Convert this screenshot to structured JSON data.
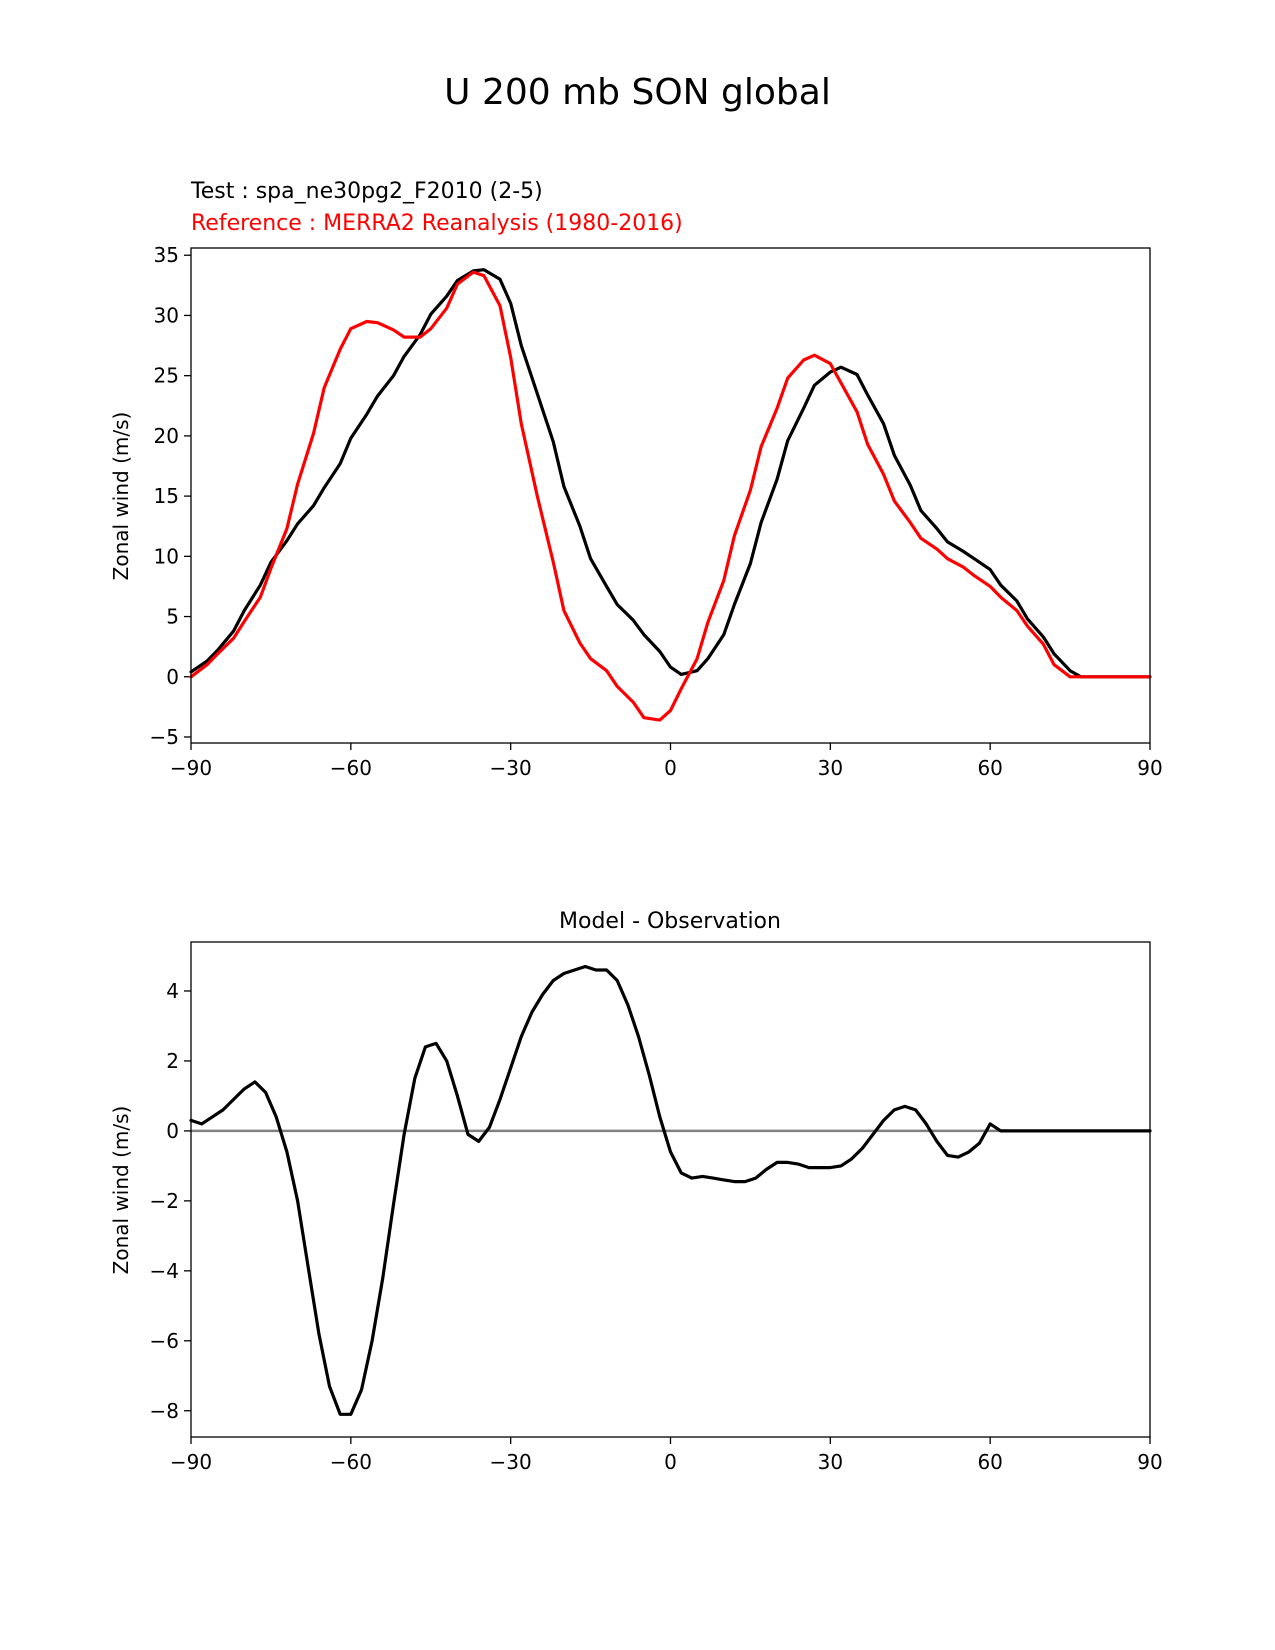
{
  "figure": {
    "suptitle": "U 200 mb SON global"
  },
  "chart_data": [
    {
      "type": "line",
      "test_label": "Test : spa_ne30pg2_F2010 (2-5)",
      "reference_label": "Reference : MERRA2 Reanalysis (1980-2016)",
      "title": "",
      "xlabel": "",
      "ylabel": "Zonal wind (m/s)",
      "xlim": [
        -90,
        90
      ],
      "ylim": [
        -5.5,
        35.6
      ],
      "xticks": [
        -90,
        -60,
        -30,
        0,
        30,
        60,
        90
      ],
      "xtick_labels": [
        "−90",
        "−60",
        "−30",
        "0",
        "30",
        "60",
        "90"
      ],
      "yticks": [
        -5,
        0,
        5,
        10,
        15,
        20,
        25,
        30,
        35
      ],
      "ytick_labels": [
        "−5",
        "0",
        "5",
        "10",
        "15",
        "20",
        "25",
        "30",
        "35"
      ],
      "grid": false,
      "series": [
        {
          "name": "Test : spa_ne30pg2_F2010 (2-5)",
          "color": "#000000",
          "x": [
            -90,
            -87,
            -85,
            -82,
            -80,
            -77,
            -75,
            -72,
            -70,
            -67,
            -65,
            -62,
            -60,
            -57,
            -55,
            -52,
            -50,
            -47,
            -45,
            -42,
            -40,
            -37,
            -35,
            -32,
            -30,
            -28,
            -25,
            -22,
            -20,
            -17,
            -15,
            -12,
            -10,
            -7,
            -5,
            -2,
            0,
            2,
            5,
            7,
            10,
            12,
            15,
            17,
            20,
            22,
            25,
            27,
            30,
            32,
            35,
            37,
            40,
            42,
            45,
            47,
            50,
            52,
            55,
            57,
            60,
            62,
            65,
            67,
            70,
            72,
            75,
            77,
            80,
            82,
            85,
            87,
            90
          ],
          "y": [
            0.4,
            1.3,
            2.2,
            3.8,
            5.5,
            7.6,
            9.5,
            11.3,
            12.7,
            14.2,
            15.7,
            17.7,
            19.8,
            21.8,
            23.3,
            25.0,
            26.6,
            28.4,
            30.1,
            31.6,
            32.9,
            33.7,
            33.8,
            33.0,
            31.0,
            27.5,
            23.5,
            19.5,
            15.8,
            12.5,
            9.8,
            7.5,
            6.0,
            4.7,
            3.5,
            2.1,
            0.8,
            0.2,
            0.5,
            1.5,
            3.5,
            6.0,
            9.4,
            12.8,
            16.4,
            19.6,
            22.3,
            24.2,
            25.3,
            25.7,
            25.1,
            23.4,
            21.0,
            18.4,
            15.9,
            13.8,
            12.3,
            11.2,
            10.4,
            9.8,
            8.9,
            7.6,
            6.3,
            4.8,
            3.3,
            1.9,
            0.5,
            0.0,
            0.0,
            0.0,
            0.0,
            0.0,
            0.0
          ]
        },
        {
          "name": "Reference : MERRA2 Reanalysis (1980-2016)",
          "color": "#ff0000",
          "x": [
            -90,
            -87,
            -85,
            -82,
            -80,
            -77,
            -75,
            -72,
            -70,
            -67,
            -65,
            -62,
            -60,
            -57,
            -55,
            -52,
            -50,
            -47,
            -45,
            -42,
            -40,
            -37,
            -35,
            -32,
            -30,
            -28,
            -25,
            -22,
            -20,
            -17,
            -15,
            -12,
            -10,
            -7,
            -5,
            -2,
            0,
            2,
            5,
            7,
            10,
            12,
            15,
            17,
            20,
            22,
            25,
            27,
            30,
            32,
            35,
            37,
            40,
            42,
            45,
            47,
            50,
            52,
            55,
            57,
            60,
            62,
            65,
            67,
            70,
            72,
            75,
            77,
            80,
            82,
            85,
            87,
            90
          ],
          "y": [
            0.0,
            1.0,
            1.9,
            3.2,
            4.6,
            6.6,
            9.0,
            12.3,
            16.0,
            20.2,
            24.0,
            27.2,
            28.9,
            29.5,
            29.4,
            28.8,
            28.2,
            28.2,
            28.9,
            30.6,
            32.6,
            33.6,
            33.3,
            30.8,
            26.5,
            21.0,
            15.0,
            9.5,
            5.5,
            2.8,
            1.5,
            0.5,
            -0.8,
            -2.1,
            -3.4,
            -3.6,
            -2.8,
            -1.0,
            1.5,
            4.5,
            8.0,
            11.7,
            15.5,
            19.1,
            22.3,
            24.8,
            26.3,
            26.7,
            26.0,
            24.4,
            22.0,
            19.3,
            16.8,
            14.6,
            12.8,
            11.5,
            10.6,
            9.8,
            9.1,
            8.4,
            7.5,
            6.6,
            5.5,
            4.2,
            2.7,
            1.0,
            0.0,
            0.0,
            0.0,
            0.0,
            0.0,
            0.0,
            0.0
          ]
        }
      ]
    },
    {
      "type": "line",
      "title": "Model - Observation",
      "xlabel": "",
      "ylabel": "Zonal wind (m/s)",
      "xlim": [
        -90,
        90
      ],
      "ylim": [
        -8.75,
        5.4
      ],
      "xticks": [
        -90,
        -60,
        -30,
        0,
        30,
        60,
        90
      ],
      "xtick_labels": [
        "−90",
        "−60",
        "−30",
        "0",
        "30",
        "60",
        "90"
      ],
      "yticks": [
        -8,
        -6,
        -4,
        -2,
        0,
        2,
        4
      ],
      "ytick_labels": [
        "−8",
        "−6",
        "−4",
        "−2",
        "0",
        "2",
        "4"
      ],
      "grid": false,
      "zero_line_color": "#808080",
      "series": [
        {
          "name": "",
          "color": "#000000",
          "x": [
            -90,
            -88,
            -86,
            -84,
            -82,
            -80,
            -78,
            -76,
            -74,
            -72,
            -70,
            -68,
            -66,
            -64,
            -62,
            -60,
            -58,
            -56,
            -54,
            -52,
            -50,
            -48,
            -46,
            -44,
            -42,
            -40,
            -38,
            -36,
            -34,
            -32,
            -30,
            -28,
            -26,
            -24,
            -22,
            -20,
            -18,
            -16,
            -14,
            -12,
            -10,
            -8,
            -6,
            -4,
            -2,
            0,
            2,
            4,
            6,
            8,
            10,
            12,
            14,
            16,
            18,
            20,
            22,
            24,
            26,
            28,
            30,
            32,
            34,
            36,
            38,
            40,
            42,
            44,
            46,
            48,
            50,
            52,
            54,
            56,
            58,
            60,
            62,
            64,
            66,
            68,
            70,
            72,
            74,
            76,
            78,
            80,
            82,
            84,
            86,
            88,
            90
          ],
          "y": [
            0.3,
            0.2,
            0.4,
            0.6,
            0.9,
            1.2,
            1.4,
            1.1,
            0.4,
            -0.6,
            -2.0,
            -3.9,
            -5.8,
            -7.3,
            -8.1,
            -8.1,
            -7.4,
            -6.0,
            -4.2,
            -2.1,
            -0.1,
            1.5,
            2.4,
            2.5,
            2.0,
            1.0,
            -0.1,
            -0.3,
            0.1,
            0.9,
            1.8,
            2.7,
            3.4,
            3.9,
            4.3,
            4.5,
            4.6,
            4.7,
            4.6,
            4.6,
            4.3,
            3.6,
            2.7,
            1.6,
            0.4,
            -0.6,
            -1.2,
            -1.35,
            -1.3,
            -1.35,
            -1.4,
            -1.45,
            -1.45,
            -1.35,
            -1.1,
            -0.9,
            -0.9,
            -0.95,
            -1.05,
            -1.05,
            -1.05,
            -1.0,
            -0.8,
            -0.5,
            -0.1,
            0.3,
            0.6,
            0.7,
            0.6,
            0.2,
            -0.3,
            -0.7,
            -0.75,
            -0.6,
            -0.35,
            0.2,
            0.0,
            0.0,
            0.0,
            0.0,
            0.0,
            0.0,
            0.0,
            0.0,
            0.0,
            0.0,
            0.0,
            0.0,
            0.0,
            0.0,
            0.0
          ]
        }
      ]
    }
  ]
}
